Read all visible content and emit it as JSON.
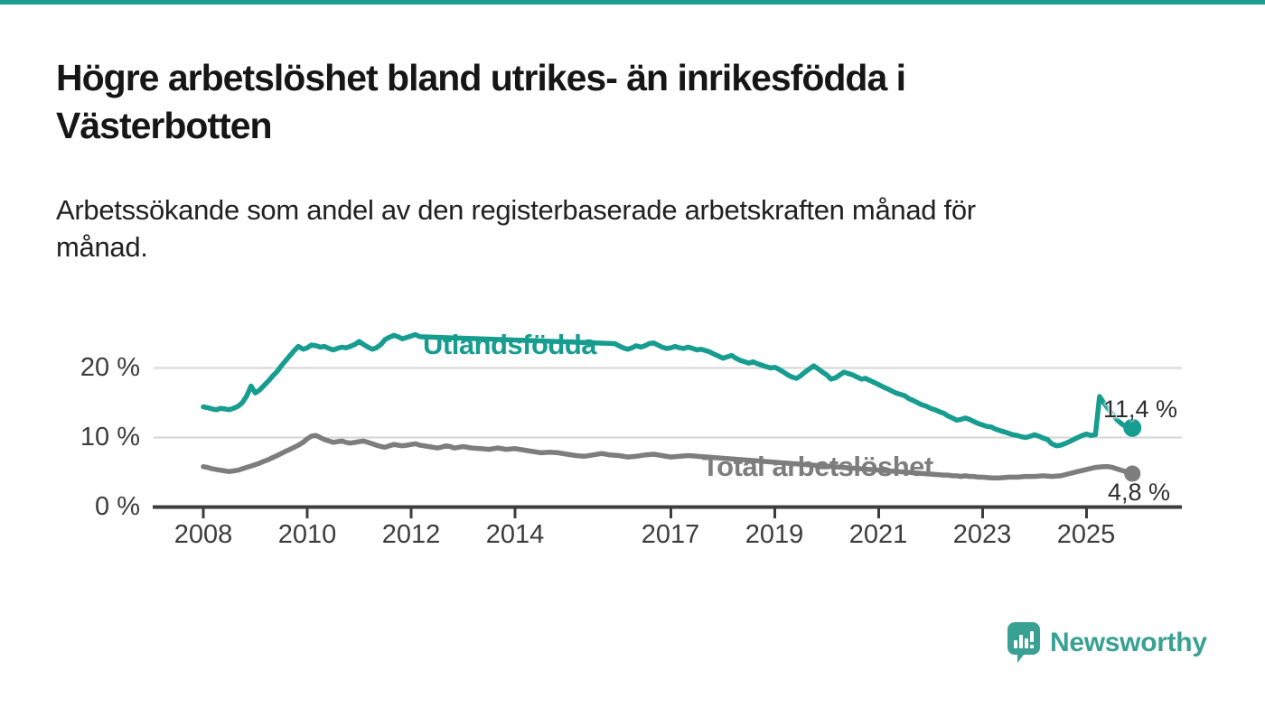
{
  "page": {
    "top_border_color": "#1a9e8f",
    "background": "#ffffff"
  },
  "header": {
    "title": "Högre arbetslöshet bland utrikes- än inrikesfödda i Västerbotten",
    "subtitle": "Arbetssökande som andel av den registerbaserade arbetskraften månad för månad."
  },
  "footer": {
    "brand": "Newsworthy",
    "logo_color": "#38a193",
    "logo_icon": "bar-chart-speech-bubble"
  },
  "chart_data": {
    "type": "line",
    "title": "Högre arbetslöshet bland utrikes- än inrikesfödda i Västerbotten",
    "subtitle": "Arbetssökande som andel av den registerbaserade arbetskraften månad för månad.",
    "unit": "%",
    "grid": "horizontal",
    "legend_position": "inline-labels",
    "axis_color": "#3d3d3d",
    "gridline_color": "#d5d5d5",
    "x_axis": {
      "range": [
        2007.85,
        2026.3
      ],
      "ticks": [
        2008,
        2010,
        2012,
        2014,
        2017,
        2019,
        2021,
        2023,
        2025
      ],
      "tick_labels": [
        "2008",
        "2010",
        "2012",
        "2014",
        "2017",
        "2019",
        "2021",
        "2023",
        "2025"
      ]
    },
    "y_axis": {
      "range": [
        0,
        26
      ],
      "ticks": [
        0,
        10,
        20
      ],
      "tick_labels": [
        "0 %",
        "10 %",
        "20 %"
      ]
    },
    "series": [
      {
        "name": "Utlandsfödda",
        "color": "#169d8f",
        "end_label": "11,4 %",
        "end_value": 11.4,
        "end_dot_radius": 10,
        "label_gap_years": [
          2012.2,
          2015.88
        ],
        "points": [
          [
            2008.0,
            14.4
          ],
          [
            2008.08,
            14.3
          ],
          [
            2008.17,
            14.1
          ],
          [
            2008.25,
            14.0
          ],
          [
            2008.33,
            14.2
          ],
          [
            2008.42,
            14.1
          ],
          [
            2008.5,
            14.0
          ],
          [
            2008.58,
            14.2
          ],
          [
            2008.67,
            14.5
          ],
          [
            2008.75,
            15.0
          ],
          [
            2008.83,
            15.9
          ],
          [
            2008.92,
            17.4
          ],
          [
            2009.0,
            16.4
          ],
          [
            2009.08,
            16.8
          ],
          [
            2009.17,
            17.5
          ],
          [
            2009.25,
            18.1
          ],
          [
            2009.33,
            18.8
          ],
          [
            2009.42,
            19.5
          ],
          [
            2009.5,
            20.3
          ],
          [
            2009.58,
            21.0
          ],
          [
            2009.67,
            21.8
          ],
          [
            2009.75,
            22.5
          ],
          [
            2009.83,
            23.1
          ],
          [
            2009.92,
            22.7
          ],
          [
            2010.0,
            22.9
          ],
          [
            2010.08,
            23.3
          ],
          [
            2010.17,
            23.2
          ],
          [
            2010.25,
            23.0
          ],
          [
            2010.33,
            23.1
          ],
          [
            2010.42,
            22.8
          ],
          [
            2010.5,
            22.6
          ],
          [
            2010.58,
            22.8
          ],
          [
            2010.67,
            23.0
          ],
          [
            2010.75,
            22.9
          ],
          [
            2010.83,
            23.1
          ],
          [
            2010.92,
            23.4
          ],
          [
            2011.0,
            23.8
          ],
          [
            2011.08,
            23.4
          ],
          [
            2011.17,
            23.0
          ],
          [
            2011.25,
            22.7
          ],
          [
            2011.33,
            22.9
          ],
          [
            2011.42,
            23.4
          ],
          [
            2011.5,
            24.1
          ],
          [
            2011.58,
            24.4
          ],
          [
            2011.67,
            24.7
          ],
          [
            2011.75,
            24.5
          ],
          [
            2011.83,
            24.2
          ],
          [
            2011.92,
            24.4
          ],
          [
            2012.0,
            24.6
          ],
          [
            2012.08,
            24.8
          ],
          [
            2012.17,
            24.5
          ],
          [
            2015.92,
            23.5
          ],
          [
            2016.0,
            23.2
          ],
          [
            2016.08,
            22.9
          ],
          [
            2016.17,
            22.7
          ],
          [
            2016.25,
            22.9
          ],
          [
            2016.33,
            23.2
          ],
          [
            2016.42,
            23.0
          ],
          [
            2016.5,
            23.2
          ],
          [
            2016.58,
            23.5
          ],
          [
            2016.67,
            23.6
          ],
          [
            2016.75,
            23.3
          ],
          [
            2016.83,
            23.0
          ],
          [
            2016.92,
            22.8
          ],
          [
            2017.0,
            22.9
          ],
          [
            2017.08,
            23.1
          ],
          [
            2017.17,
            22.9
          ],
          [
            2017.25,
            22.8
          ],
          [
            2017.33,
            23.0
          ],
          [
            2017.42,
            22.8
          ],
          [
            2017.5,
            22.6
          ],
          [
            2017.58,
            22.7
          ],
          [
            2017.67,
            22.5
          ],
          [
            2017.75,
            22.3
          ],
          [
            2017.83,
            22.0
          ],
          [
            2017.92,
            21.7
          ],
          [
            2018.0,
            21.4
          ],
          [
            2018.08,
            21.6
          ],
          [
            2018.17,
            21.8
          ],
          [
            2018.25,
            21.4
          ],
          [
            2018.33,
            21.1
          ],
          [
            2018.42,
            20.9
          ],
          [
            2018.5,
            20.7
          ],
          [
            2018.58,
            20.9
          ],
          [
            2018.67,
            20.6
          ],
          [
            2018.75,
            20.4
          ],
          [
            2018.83,
            20.2
          ],
          [
            2018.92,
            20.0
          ],
          [
            2019.0,
            20.1
          ],
          [
            2019.08,
            19.8
          ],
          [
            2019.17,
            19.4
          ],
          [
            2019.25,
            19.0
          ],
          [
            2019.33,
            18.7
          ],
          [
            2019.42,
            18.5
          ],
          [
            2019.5,
            18.9
          ],
          [
            2019.58,
            19.4
          ],
          [
            2019.67,
            19.9
          ],
          [
            2019.75,
            20.3
          ],
          [
            2019.83,
            19.9
          ],
          [
            2019.92,
            19.4
          ],
          [
            2020.0,
            19.0
          ],
          [
            2020.08,
            18.4
          ],
          [
            2020.17,
            18.6
          ],
          [
            2020.25,
            19.0
          ],
          [
            2020.33,
            19.4
          ],
          [
            2020.42,
            19.2
          ],
          [
            2020.5,
            19.0
          ],
          [
            2020.58,
            18.7
          ],
          [
            2020.67,
            18.4
          ],
          [
            2020.75,
            18.5
          ],
          [
            2020.83,
            18.2
          ],
          [
            2020.92,
            17.9
          ],
          [
            2021.0,
            17.6
          ],
          [
            2021.08,
            17.3
          ],
          [
            2021.17,
            17.0
          ],
          [
            2021.25,
            16.7
          ],
          [
            2021.33,
            16.4
          ],
          [
            2021.42,
            16.2
          ],
          [
            2021.5,
            16.0
          ],
          [
            2021.58,
            15.6
          ],
          [
            2021.67,
            15.3
          ],
          [
            2021.75,
            15.0
          ],
          [
            2021.83,
            14.7
          ],
          [
            2021.92,
            14.5
          ],
          [
            2022.0,
            14.2
          ],
          [
            2022.08,
            14.0
          ],
          [
            2022.17,
            13.7
          ],
          [
            2022.25,
            13.5
          ],
          [
            2022.33,
            13.1
          ],
          [
            2022.42,
            12.8
          ],
          [
            2022.5,
            12.5
          ],
          [
            2022.58,
            12.6
          ],
          [
            2022.67,
            12.8
          ],
          [
            2022.75,
            12.6
          ],
          [
            2022.83,
            12.3
          ],
          [
            2022.92,
            12.0
          ],
          [
            2023.0,
            11.8
          ],
          [
            2023.08,
            11.6
          ],
          [
            2023.17,
            11.5
          ],
          [
            2023.25,
            11.2
          ],
          [
            2023.33,
            11.0
          ],
          [
            2023.42,
            10.8
          ],
          [
            2023.5,
            10.6
          ],
          [
            2023.58,
            10.4
          ],
          [
            2023.67,
            10.3
          ],
          [
            2023.75,
            10.1
          ],
          [
            2023.83,
            10.0
          ],
          [
            2023.92,
            10.2
          ],
          [
            2024.0,
            10.4
          ],
          [
            2024.08,
            10.2
          ],
          [
            2024.17,
            9.9
          ],
          [
            2024.25,
            9.7
          ],
          [
            2024.33,
            9.1
          ],
          [
            2024.42,
            8.8
          ],
          [
            2024.5,
            8.9
          ],
          [
            2024.58,
            9.1
          ],
          [
            2024.67,
            9.4
          ],
          [
            2024.75,
            9.7
          ],
          [
            2024.83,
            10.0
          ],
          [
            2024.92,
            10.3
          ],
          [
            2025.0,
            10.5
          ],
          [
            2025.08,
            10.3
          ],
          [
            2025.17,
            10.4
          ],
          [
            2025.25,
            15.9
          ],
          [
            2025.33,
            15.0
          ],
          [
            2025.42,
            14.1
          ],
          [
            2025.5,
            13.3
          ],
          [
            2025.58,
            12.6
          ],
          [
            2025.67,
            12.0
          ],
          [
            2025.75,
            11.6
          ],
          [
            2025.83,
            11.4
          ]
        ]
      },
      {
        "name": "Total arbetslöshet",
        "color": "#7d7d7d",
        "end_label": "4,8 %",
        "end_value": 4.8,
        "end_dot_radius": 9,
        "label_gap_years": [
          2017.55,
          2022.2
        ],
        "points": [
          [
            2008.0,
            5.8
          ],
          [
            2008.08,
            5.7
          ],
          [
            2008.17,
            5.5
          ],
          [
            2008.25,
            5.4
          ],
          [
            2008.33,
            5.3
          ],
          [
            2008.42,
            5.2
          ],
          [
            2008.5,
            5.1
          ],
          [
            2008.58,
            5.2
          ],
          [
            2008.67,
            5.3
          ],
          [
            2008.75,
            5.5
          ],
          [
            2008.83,
            5.7
          ],
          [
            2008.92,
            5.9
          ],
          [
            2009.0,
            6.1
          ],
          [
            2009.08,
            6.3
          ],
          [
            2009.17,
            6.6
          ],
          [
            2009.25,
            6.8
          ],
          [
            2009.33,
            7.1
          ],
          [
            2009.42,
            7.4
          ],
          [
            2009.5,
            7.7
          ],
          [
            2009.58,
            8.0
          ],
          [
            2009.67,
            8.3
          ],
          [
            2009.75,
            8.6
          ],
          [
            2009.83,
            8.9
          ],
          [
            2009.92,
            9.3
          ],
          [
            2010.0,
            9.8
          ],
          [
            2010.08,
            10.2
          ],
          [
            2010.17,
            10.3
          ],
          [
            2010.25,
            10.0
          ],
          [
            2010.33,
            9.7
          ],
          [
            2010.42,
            9.5
          ],
          [
            2010.5,
            9.3
          ],
          [
            2010.58,
            9.4
          ],
          [
            2010.67,
            9.5
          ],
          [
            2010.75,
            9.3
          ],
          [
            2010.83,
            9.2
          ],
          [
            2010.92,
            9.3
          ],
          [
            2011.0,
            9.4
          ],
          [
            2011.08,
            9.5
          ],
          [
            2011.17,
            9.3
          ],
          [
            2011.25,
            9.1
          ],
          [
            2011.33,
            8.9
          ],
          [
            2011.42,
            8.7
          ],
          [
            2011.5,
            8.6
          ],
          [
            2011.58,
            8.8
          ],
          [
            2011.67,
            9.0
          ],
          [
            2011.75,
            8.9
          ],
          [
            2011.83,
            8.8
          ],
          [
            2011.92,
            8.9
          ],
          [
            2012.0,
            9.0
          ],
          [
            2012.08,
            9.1
          ],
          [
            2012.17,
            8.9
          ],
          [
            2012.25,
            8.8
          ],
          [
            2012.33,
            8.7
          ],
          [
            2012.42,
            8.6
          ],
          [
            2012.5,
            8.5
          ],
          [
            2012.58,
            8.6
          ],
          [
            2012.67,
            8.8
          ],
          [
            2012.75,
            8.7
          ],
          [
            2012.83,
            8.5
          ],
          [
            2012.92,
            8.6
          ],
          [
            2013.0,
            8.7
          ],
          [
            2013.17,
            8.5
          ],
          [
            2013.33,
            8.4
          ],
          [
            2013.5,
            8.3
          ],
          [
            2013.67,
            8.5
          ],
          [
            2013.83,
            8.3
          ],
          [
            2014.0,
            8.4
          ],
          [
            2014.17,
            8.2
          ],
          [
            2014.33,
            8.0
          ],
          [
            2014.5,
            7.8
          ],
          [
            2014.67,
            7.9
          ],
          [
            2014.83,
            7.8
          ],
          [
            2015.0,
            7.6
          ],
          [
            2015.17,
            7.4
          ],
          [
            2015.33,
            7.3
          ],
          [
            2015.5,
            7.5
          ],
          [
            2015.67,
            7.7
          ],
          [
            2015.83,
            7.5
          ],
          [
            2016.0,
            7.4
          ],
          [
            2016.17,
            7.2
          ],
          [
            2016.33,
            7.3
          ],
          [
            2016.5,
            7.5
          ],
          [
            2016.67,
            7.6
          ],
          [
            2016.83,
            7.4
          ],
          [
            2017.0,
            7.2
          ],
          [
            2017.17,
            7.3
          ],
          [
            2017.33,
            7.4
          ],
          [
            2017.5,
            7.3
          ],
          [
            2022.25,
            4.6
          ],
          [
            2022.33,
            4.6
          ],
          [
            2022.42,
            4.5
          ],
          [
            2022.5,
            4.5
          ],
          [
            2022.58,
            4.4
          ],
          [
            2022.67,
            4.5
          ],
          [
            2022.75,
            4.4
          ],
          [
            2022.83,
            4.4
          ],
          [
            2022.92,
            4.3
          ],
          [
            2023.0,
            4.3
          ],
          [
            2023.17,
            4.2
          ],
          [
            2023.33,
            4.2
          ],
          [
            2023.5,
            4.3
          ],
          [
            2023.67,
            4.3
          ],
          [
            2023.83,
            4.4
          ],
          [
            2024.0,
            4.4
          ],
          [
            2024.17,
            4.5
          ],
          [
            2024.33,
            4.4
          ],
          [
            2024.5,
            4.5
          ],
          [
            2024.67,
            4.8
          ],
          [
            2024.83,
            5.1
          ],
          [
            2025.0,
            5.4
          ],
          [
            2025.17,
            5.7
          ],
          [
            2025.33,
            5.8
          ],
          [
            2025.42,
            5.8
          ],
          [
            2025.5,
            5.7
          ],
          [
            2025.58,
            5.5
          ],
          [
            2025.67,
            5.3
          ],
          [
            2025.75,
            5.1
          ],
          [
            2025.83,
            4.8
          ]
        ]
      }
    ]
  }
}
